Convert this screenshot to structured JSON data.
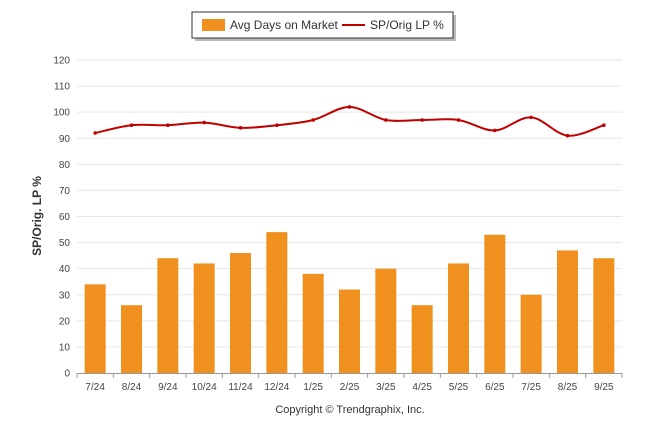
{
  "chart_data": {
    "type": "bar",
    "categories": [
      "7/24",
      "8/24",
      "9/24",
      "10/24",
      "11/24",
      "12/24",
      "1/25",
      "2/25",
      "3/25",
      "4/25",
      "5/25",
      "6/25",
      "7/25",
      "8/25",
      "9/25"
    ],
    "series": [
      {
        "name": "Avg Days on Market",
        "type": "bar",
        "color": "#f0901e",
        "values": [
          34,
          26,
          44,
          42,
          46,
          54,
          38,
          32,
          40,
          26,
          42,
          53,
          30,
          47,
          44
        ]
      },
      {
        "name": "SP/Orig LP %",
        "type": "line",
        "color": "#c00000",
        "values": [
          92,
          95,
          95,
          96,
          94,
          95,
          97,
          102,
          97,
          97,
          97,
          93,
          98,
          91,
          95
        ]
      }
    ],
    "ylabel": "SP/Orig. LP %",
    "xlabel": "",
    "ylim": [
      0,
      120
    ],
    "yticks": [
      0,
      10,
      20,
      30,
      40,
      50,
      60,
      70,
      80,
      90,
      100,
      110,
      120
    ],
    "grid": true,
    "legend_position": "top-center"
  },
  "footer": {
    "copyright": "Copyright © Trendgraphix, Inc."
  }
}
